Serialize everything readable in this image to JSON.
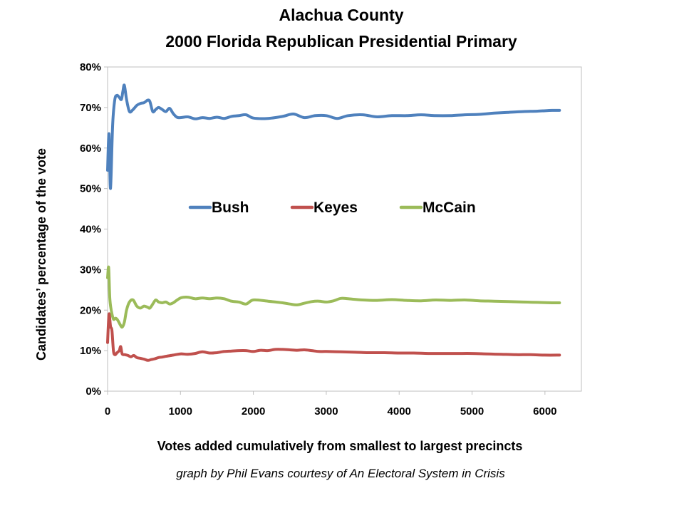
{
  "chart_data": {
    "type": "line",
    "title_lines": [
      "Alachua County",
      "2000 Florida Republican Presidential Primary"
    ],
    "xlabel": "Votes added cumulatively from smallest to largest precincts",
    "ylabel": "Candidates’ percentage of the vote",
    "credit": "graph by Phil Evans courtesy of An Electoral System in Crisis",
    "xlim": [
      0,
      6500
    ],
    "ylim": [
      0,
      0.8
    ],
    "x_ticks": [
      0,
      1000,
      2000,
      3000,
      4000,
      5000,
      6000
    ],
    "x_tick_labels": [
      "0",
      "1000",
      "2000",
      "3000",
      "4000",
      "5000",
      "6000"
    ],
    "y_ticks": [
      0,
      0.1,
      0.2,
      0.3,
      0.4,
      0.5,
      0.6,
      0.7,
      0.8
    ],
    "y_tick_labels": [
      "0%",
      "10%",
      "20%",
      "30%",
      "40%",
      "50%",
      "60%",
      "70%",
      "80%"
    ],
    "grid": false,
    "legend_position": "center",
    "series": [
      {
        "name": "Bush",
        "color": "#4f81bd",
        "x": [
          0,
          20,
          40,
          70,
          100,
          130,
          160,
          190,
          210,
          230,
          260,
          300,
          350,
          400,
          450,
          500,
          550,
          580,
          620,
          660,
          700,
          750,
          800,
          850,
          900,
          950,
          1000,
          1100,
          1200,
          1300,
          1400,
          1500,
          1600,
          1700,
          1800,
          1900,
          2000,
          2200,
          2400,
          2550,
          2700,
          2850,
          3000,
          3150,
          3300,
          3500,
          3700,
          3900,
          4100,
          4300,
          4500,
          4700,
          4900,
          5100,
          5300,
          5500,
          5700,
          5900,
          6100,
          6200
        ],
        "y": [
          0.545,
          0.635,
          0.5,
          0.66,
          0.72,
          0.73,
          0.725,
          0.72,
          0.74,
          0.755,
          0.72,
          0.69,
          0.695,
          0.705,
          0.71,
          0.712,
          0.718,
          0.715,
          0.69,
          0.695,
          0.7,
          0.695,
          0.69,
          0.698,
          0.685,
          0.676,
          0.675,
          0.677,
          0.672,
          0.675,
          0.673,
          0.676,
          0.673,
          0.678,
          0.68,
          0.682,
          0.674,
          0.673,
          0.678,
          0.684,
          0.675,
          0.68,
          0.68,
          0.673,
          0.68,
          0.682,
          0.677,
          0.68,
          0.68,
          0.682,
          0.68,
          0.68,
          0.682,
          0.683,
          0.686,
          0.688,
          0.69,
          0.691,
          0.693,
          0.693
        ]
      },
      {
        "name": "Keyes",
        "color": "#c0504d",
        "x": [
          0,
          20,
          40,
          60,
          80,
          100,
          130,
          160,
          180,
          200,
          240,
          280,
          320,
          360,
          400,
          450,
          500,
          550,
          600,
          650,
          700,
          750,
          800,
          900,
          1000,
          1100,
          1200,
          1300,
          1400,
          1500,
          1600,
          1700,
          1800,
          1900,
          2000,
          2100,
          2200,
          2300,
          2400,
          2500,
          2600,
          2700,
          2800,
          2900,
          3000,
          3200,
          3400,
          3600,
          3800,
          4000,
          4200,
          4400,
          4600,
          4800,
          5000,
          5200,
          5400,
          5600,
          5800,
          6000,
          6200
        ],
        "y": [
          0.12,
          0.19,
          0.16,
          0.15,
          0.1,
          0.09,
          0.095,
          0.1,
          0.11,
          0.092,
          0.09,
          0.088,
          0.085,
          0.088,
          0.083,
          0.081,
          0.079,
          0.076,
          0.078,
          0.08,
          0.083,
          0.084,
          0.086,
          0.089,
          0.092,
          0.091,
          0.093,
          0.097,
          0.094,
          0.095,
          0.098,
          0.099,
          0.1,
          0.1,
          0.098,
          0.101,
          0.1,
          0.103,
          0.103,
          0.102,
          0.101,
          0.102,
          0.1,
          0.098,
          0.098,
          0.097,
          0.096,
          0.095,
          0.095,
          0.094,
          0.094,
          0.093,
          0.093,
          0.093,
          0.093,
          0.092,
          0.091,
          0.09,
          0.09,
          0.089,
          0.089
        ]
      },
      {
        "name": "McCain",
        "color": "#9bbb59",
        "x": [
          0,
          15,
          30,
          50,
          80,
          110,
          140,
          170,
          200,
          230,
          260,
          300,
          350,
          400,
          450,
          500,
          550,
          580,
          620,
          660,
          700,
          750,
          800,
          850,
          900,
          1000,
          1100,
          1200,
          1300,
          1400,
          1500,
          1600,
          1700,
          1800,
          1900,
          2000,
          2200,
          2400,
          2500,
          2600,
          2700,
          2800,
          2900,
          3000,
          3100,
          3200,
          3300,
          3500,
          3700,
          3900,
          4100,
          4300,
          4500,
          4700,
          4900,
          5100,
          5300,
          5500,
          5700,
          5900,
          6100,
          6200
        ],
        "y": [
          0.28,
          0.305,
          0.23,
          0.2,
          0.178,
          0.18,
          0.175,
          0.165,
          0.158,
          0.17,
          0.2,
          0.22,
          0.225,
          0.21,
          0.205,
          0.21,
          0.207,
          0.205,
          0.215,
          0.225,
          0.22,
          0.218,
          0.22,
          0.215,
          0.218,
          0.23,
          0.232,
          0.228,
          0.23,
          0.228,
          0.23,
          0.228,
          0.222,
          0.22,
          0.215,
          0.225,
          0.222,
          0.218,
          0.215,
          0.213,
          0.217,
          0.221,
          0.222,
          0.22,
          0.223,
          0.229,
          0.228,
          0.225,
          0.224,
          0.226,
          0.224,
          0.223,
          0.225,
          0.224,
          0.225,
          0.223,
          0.222,
          0.221,
          0.22,
          0.219,
          0.218,
          0.218
        ]
      }
    ]
  }
}
